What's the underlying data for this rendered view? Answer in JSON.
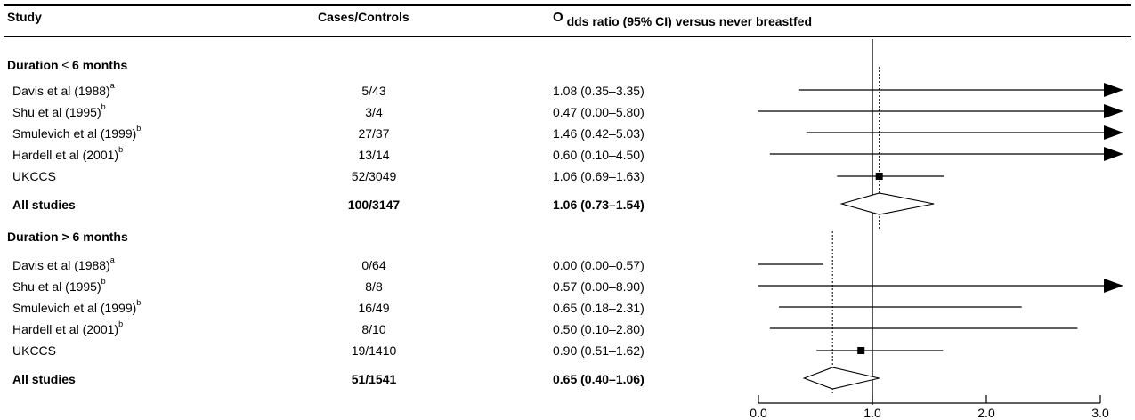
{
  "header": {
    "study": "Study",
    "cases_controls": "Cases/Controls",
    "or_first": "O",
    "or_rest": "dds ratio (95% CI) versus never breastfed"
  },
  "chart_data": {
    "type": "forest",
    "x_ticks": [
      "0.0",
      "1.0",
      "2.0",
      "3.0"
    ],
    "xlim": [
      0,
      3
    ],
    "reference_line": 1.0,
    "groups": [
      {
        "label_prefix": "Duration",
        "label_symbol": "≤",
        "label_suffix": "6 months",
        "label": "Duration ≤ 6 months",
        "pooled_dotted": 1.06,
        "studies": [
          {
            "name": "Davis et al (1988)",
            "sup": "a",
            "cases_controls": "5/43",
            "or_text": "1.08 (0.35–3.35)",
            "or": 1.08,
            "lo": 0.35,
            "hi": 3.35,
            "arrow": true,
            "box": false
          },
          {
            "name": "Shu et al (1995)",
            "sup": "b",
            "cases_controls": "3/4",
            "or_text": "0.47 (0.00–5.80)",
            "or": 0.47,
            "lo": 0.0,
            "hi": 5.8,
            "arrow": true,
            "box": false
          },
          {
            "name": "Smulevich et al (1999)",
            "sup": "b",
            "cases_controls": "27/37",
            "or_text": "1.46 (0.42–5.03)",
            "or": 1.46,
            "lo": 0.42,
            "hi": 5.03,
            "arrow": true,
            "box": false
          },
          {
            "name": "Hardell et al (2001)",
            "sup": "b",
            "cases_controls": "13/14",
            "or_text": "0.60 (0.10–4.50)",
            "or": 0.6,
            "lo": 0.1,
            "hi": 4.5,
            "arrow": true,
            "box": false
          },
          {
            "name": "UKCCS",
            "sup": "",
            "cases_controls": "52/3049",
            "or_text": "1.06 (0.69–1.63)",
            "or": 1.06,
            "lo": 0.69,
            "hi": 1.63,
            "arrow": false,
            "box": true
          }
        ],
        "pooled": {
          "name": "All studies",
          "cases_controls": "100/3147",
          "or_text": "1.06 (0.73–1.54)",
          "or": 1.06,
          "lo": 0.73,
          "hi": 1.54
        }
      },
      {
        "label_prefix": "Duration",
        "label_symbol": ">",
        "label_suffix": "6 months",
        "label": "Duration > 6 months",
        "pooled_dotted": 0.65,
        "studies": [
          {
            "name": "Davis et al (1988)",
            "sup": "a",
            "cases_controls": "0/64",
            "or_text": "0.00 (0.00–0.57)",
            "or": 0.0,
            "lo": 0.0,
            "hi": 0.57,
            "arrow": false,
            "box": false
          },
          {
            "name": "Shu et al (1995)",
            "sup": "b",
            "cases_controls": "8/8",
            "or_text": "0.57 (0.00–8.90)",
            "or": 0.57,
            "lo": 0.0,
            "hi": 8.9,
            "arrow": true,
            "box": false
          },
          {
            "name": "Smulevich et al (1999)",
            "sup": "b",
            "cases_controls": "16/49",
            "or_text": "0.65 (0.18–2.31)",
            "or": 0.65,
            "lo": 0.18,
            "hi": 2.31,
            "arrow": false,
            "box": false
          },
          {
            "name": "Hardell et al (2001)",
            "sup": "b",
            "cases_controls": "8/10",
            "or_text": "0.50 (0.10–2.80)",
            "or": 0.5,
            "lo": 0.1,
            "hi": 2.8,
            "arrow": false,
            "box": false
          },
          {
            "name": "UKCCS",
            "sup": "",
            "cases_controls": "19/1410",
            "or_text": "0.90 (0.51–1.62)",
            "or": 0.9,
            "lo": 0.51,
            "hi": 1.62,
            "arrow": false,
            "box": true
          }
        ],
        "pooled": {
          "name": "All studies",
          "cases_controls": "51/1541",
          "or_text": "0.65 (0.40–1.06)",
          "or": 0.65,
          "lo": 0.4,
          "hi": 1.06
        }
      }
    ]
  }
}
